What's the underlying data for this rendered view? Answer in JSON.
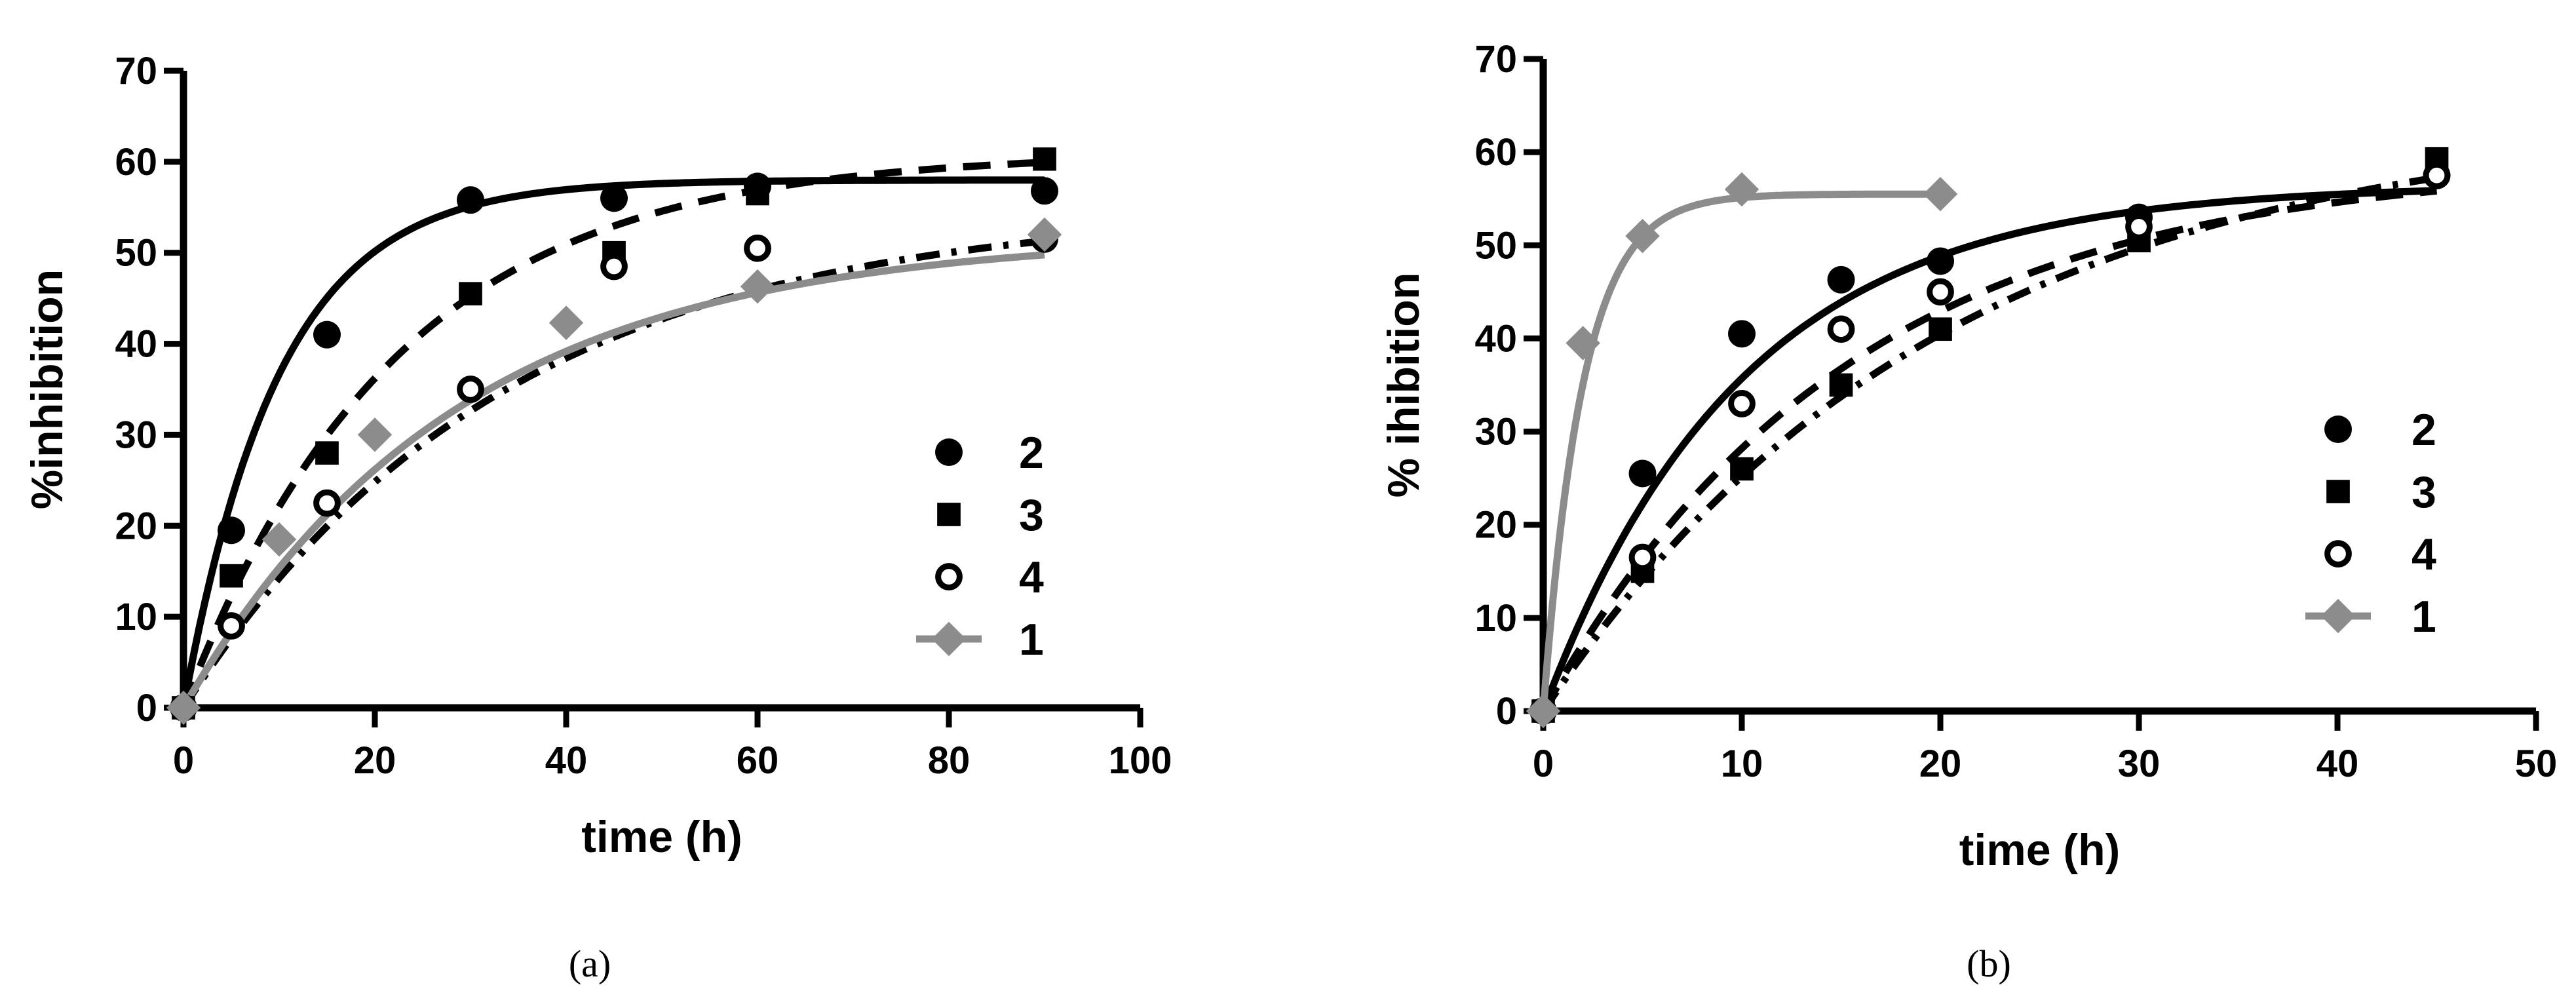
{
  "chart_data": [
    {
      "type": "scatter",
      "panel": "a",
      "caption": "(a)",
      "xlabel": "time (h)",
      "ylabel": "%inhibition",
      "xlim": [
        0,
        100
      ],
      "ylim": [
        0,
        70
      ],
      "xticks": [
        0,
        20,
        40,
        60,
        80,
        100
      ],
      "yticks": [
        0,
        10,
        20,
        30,
        40,
        50,
        60,
        70
      ],
      "legend_position": "bottom-right",
      "colors": {
        "black": "#000000",
        "gray": "#8c8c8c"
      },
      "series": [
        {
          "name": "2",
          "marker": "circle-filled",
          "line": "solid",
          "color": "#000000",
          "points": [
            [
              0,
              0
            ],
            [
              5,
              19.5
            ],
            [
              15,
              41
            ],
            [
              30,
              55.8
            ],
            [
              45,
              56
            ],
            [
              60,
              57.3
            ],
            [
              90,
              56.8
            ]
          ],
          "fit": {
            "plateau": 58,
            "k": 0.1
          }
        },
        {
          "name": "3",
          "marker": "square-filled",
          "line": "dashed",
          "color": "#000000",
          "points": [
            [
              0,
              0
            ],
            [
              5,
              14.5
            ],
            [
              15,
              28
            ],
            [
              30,
              45.5
            ],
            [
              45,
              50
            ],
            [
              60,
              56.5
            ],
            [
              90,
              60.3
            ]
          ],
          "fit": {
            "plateau": 61,
            "k": 0.045
          }
        },
        {
          "name": "4",
          "marker": "circle-open",
          "line": "dashdot",
          "color": "#000000",
          "points": [
            [
              0,
              0
            ],
            [
              5,
              9
            ],
            [
              15,
              22.5
            ],
            [
              30,
              35
            ],
            [
              45,
              48.5
            ],
            [
              60,
              50.5
            ],
            [
              90,
              51.5
            ]
          ],
          "fit": {
            "plateau": 55,
            "k": 0.03
          }
        },
        {
          "name": "1",
          "marker": "diamond-filled",
          "line": "solid",
          "color": "#8c8c8c",
          "points": [
            [
              0,
              0
            ],
            [
              10,
              18.5
            ],
            [
              20,
              30
            ],
            [
              40,
              42.3
            ],
            [
              60,
              46.3
            ],
            [
              90,
              52
            ]
          ],
          "fit": {
            "plateau": 52,
            "k": 0.035
          }
        }
      ]
    },
    {
      "type": "scatter",
      "panel": "b",
      "caption": "(b)",
      "xlabel": "time (h)",
      "ylabel": "% ihibition",
      "xlim": [
        0,
        50
      ],
      "ylim": [
        0,
        70
      ],
      "xticks": [
        0,
        10,
        20,
        30,
        40,
        50
      ],
      "yticks": [
        0,
        10,
        20,
        30,
        40,
        50,
        60,
        70
      ],
      "legend_position": "right",
      "colors": {
        "black": "#000000",
        "gray": "#8c8c8c"
      },
      "series": [
        {
          "name": "2",
          "marker": "circle-filled",
          "line": "solid",
          "color": "#000000",
          "points": [
            [
              0,
              0
            ],
            [
              5,
              25.5
            ],
            [
              10,
              40.5
            ],
            [
              15,
              46.3
            ],
            [
              20,
              48.3
            ],
            [
              30,
              53
            ],
            [
              45,
              57.5
            ]
          ],
          "fit": {
            "plateau": 56.5,
            "k": 0.1
          }
        },
        {
          "name": "3",
          "marker": "square-filled",
          "line": "dashed",
          "color": "#000000",
          "points": [
            [
              0,
              0
            ],
            [
              5,
              15
            ],
            [
              10,
              26
            ],
            [
              15,
              35
            ],
            [
              20,
              41
            ],
            [
              30,
              50.5
            ],
            [
              45,
              59.3
            ]
          ],
          "fit": {
            "plateau": 59,
            "k": 0.065
          }
        },
        {
          "name": "4",
          "marker": "circle-open",
          "line": "dashdot",
          "color": "#000000",
          "points": [
            [
              0,
              0
            ],
            [
              5,
              16.5
            ],
            [
              10,
              33
            ],
            [
              15,
              41
            ],
            [
              20,
              45
            ],
            [
              30,
              52
            ],
            [
              45,
              57.5
            ]
          ],
          "fit": {
            "plateau": 64,
            "k": 0.05
          }
        },
        {
          "name": "1",
          "marker": "diamond-filled",
          "line": "solid",
          "color": "#8c8c8c",
          "points": [
            [
              0,
              0
            ],
            [
              2,
              39.5
            ],
            [
              5,
              51
            ],
            [
              10,
              56
            ],
            [
              20,
              55.5
            ]
          ],
          "fit": {
            "plateau": 55.5,
            "k": 0.5,
            "xmax": 20
          }
        }
      ]
    }
  ]
}
